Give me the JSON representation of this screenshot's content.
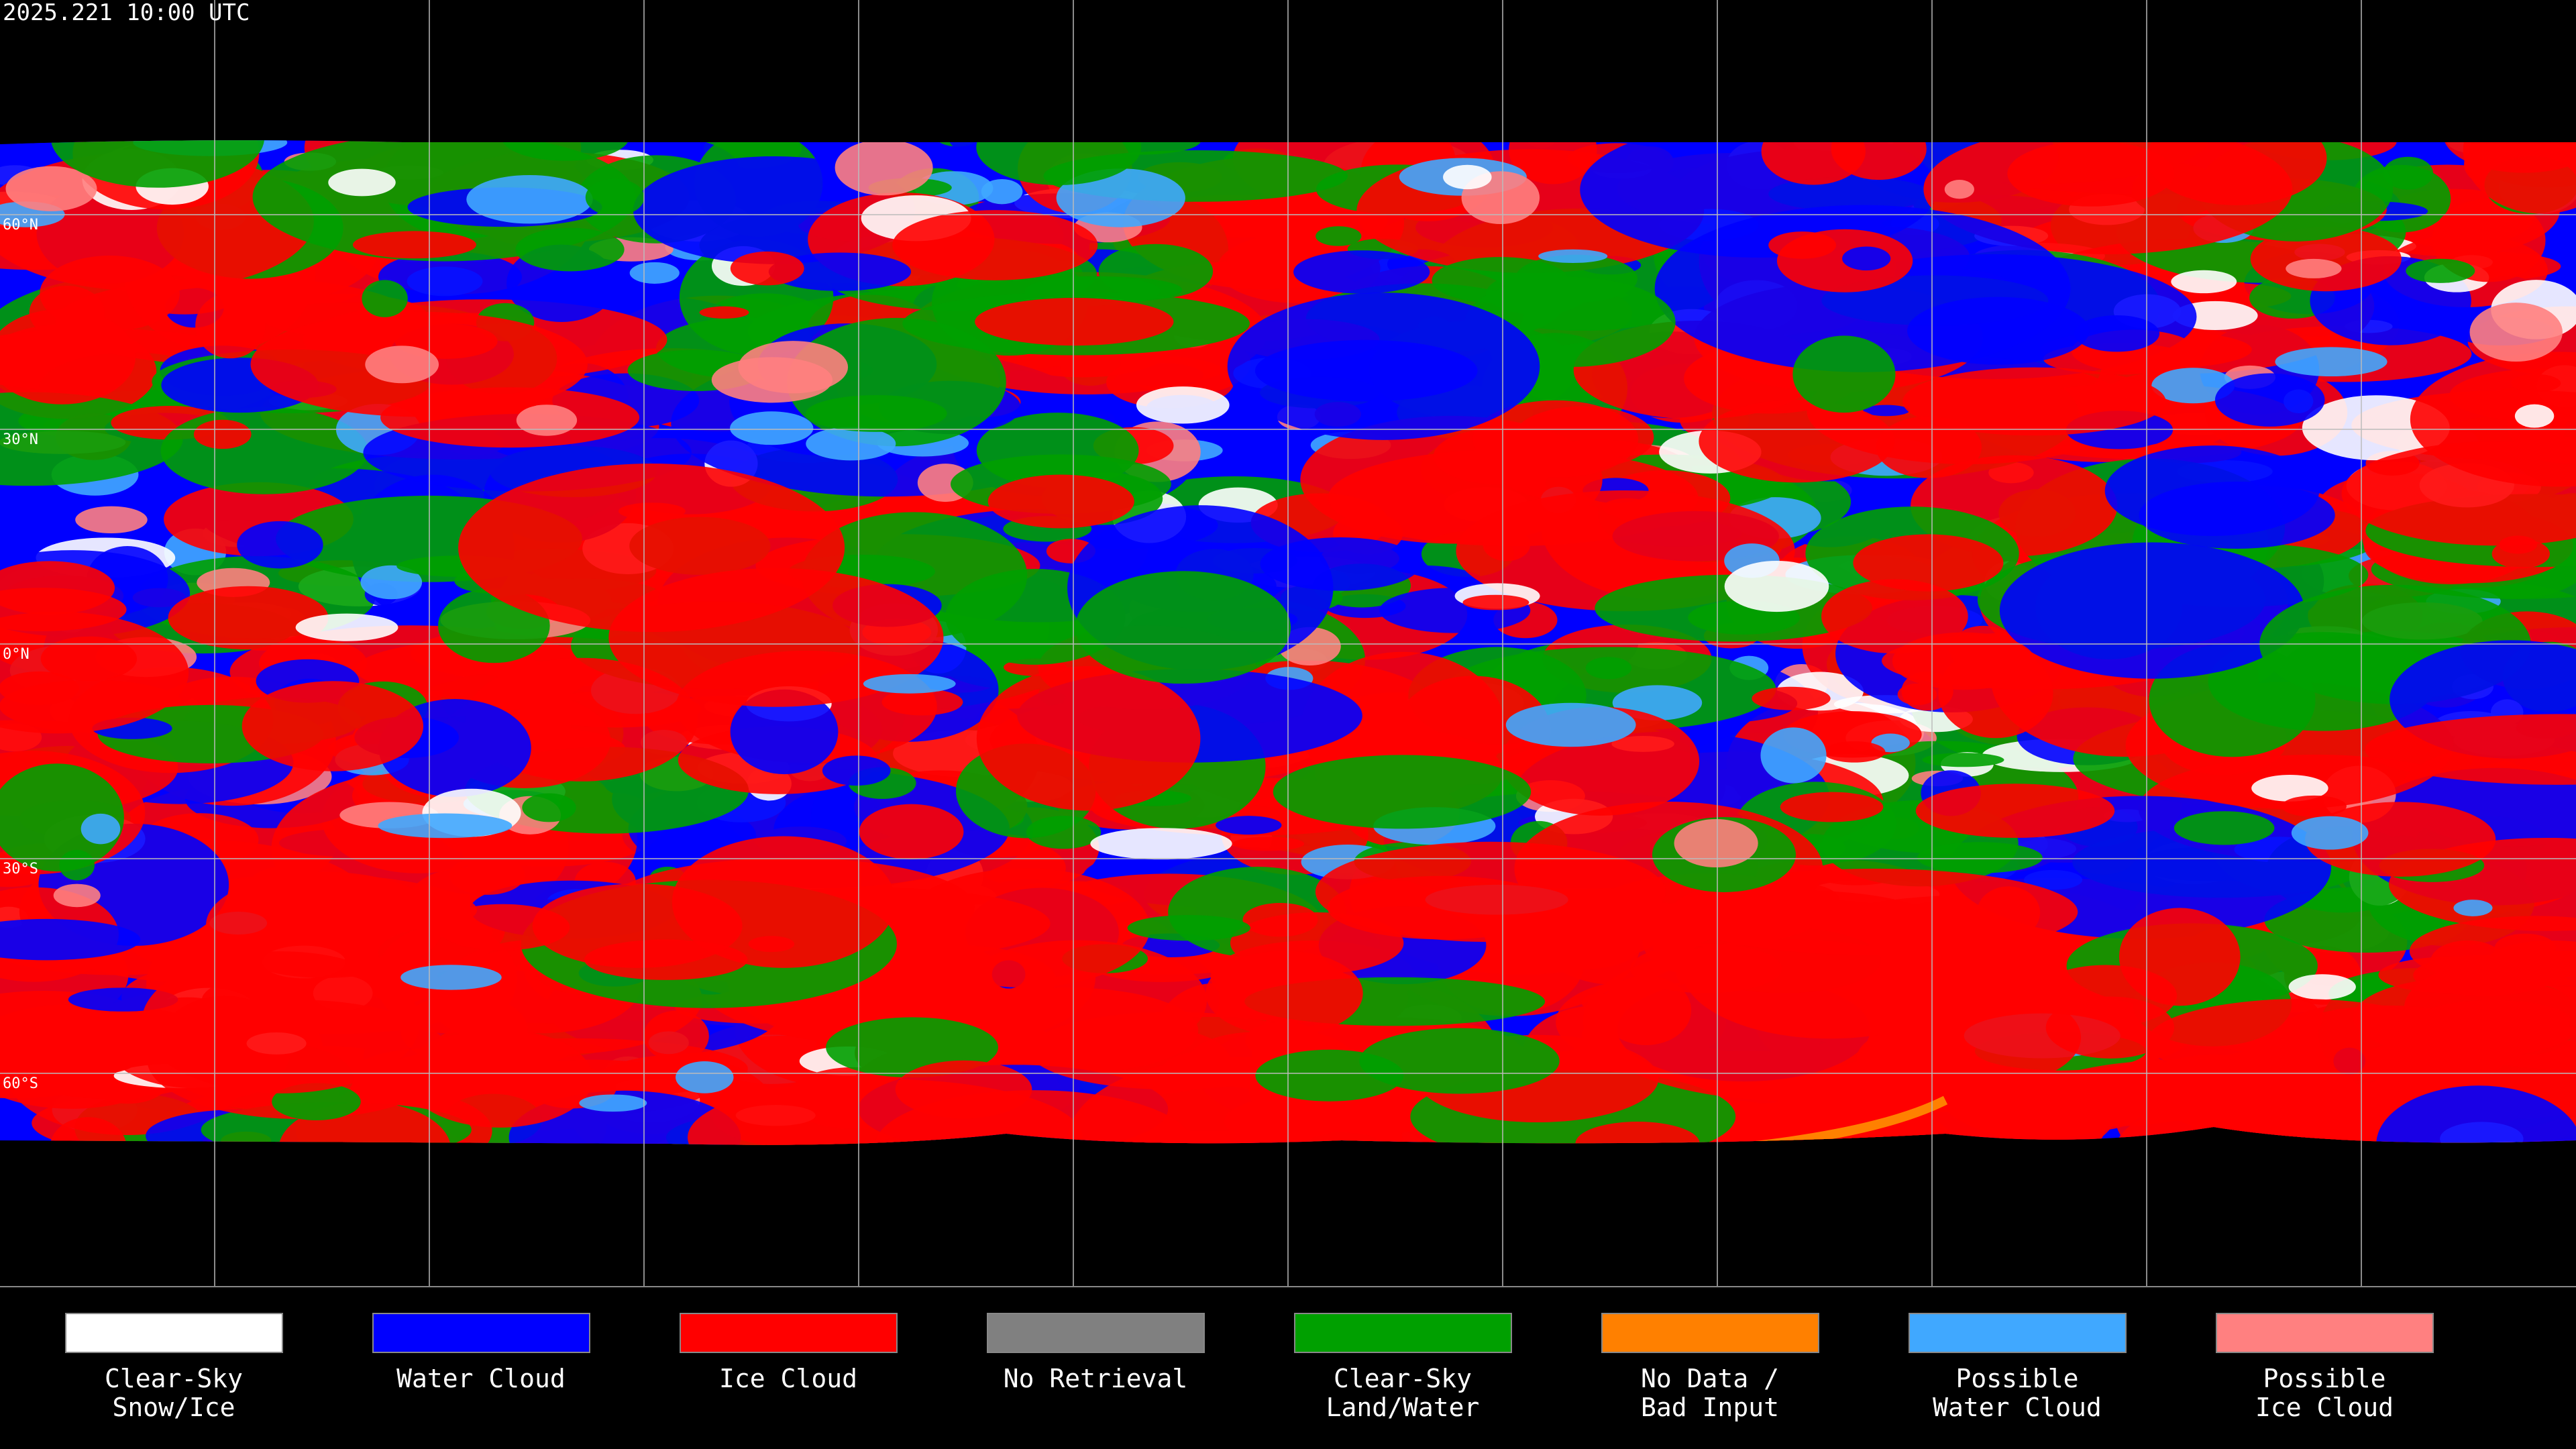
{
  "header": {
    "timestamp": "2025.221 10:00 UTC"
  },
  "latitude_labels": [
    "60°N",
    "30°N",
    "0°N",
    "30°S",
    "60°S"
  ],
  "legend": {
    "items": [
      {
        "label": [
          "Clear-Sky",
          "Snow/Ice"
        ],
        "color": "#ffffff"
      },
      {
        "label": [
          "Water Cloud"
        ],
        "color": "#0000ff"
      },
      {
        "label": [
          "Ice Cloud"
        ],
        "color": "#ff0000"
      },
      {
        "label": [
          "No Retrieval"
        ],
        "color": "#808080"
      },
      {
        "label": [
          "Clear-Sky",
          "Land/Water"
        ],
        "color": "#00a000"
      },
      {
        "label": [
          "No Data /",
          "Bad Input"
        ],
        "color": "#ff8000"
      },
      {
        "label": [
          "Possible",
          "Water Cloud"
        ],
        "color": "#40a8ff"
      },
      {
        "label": [
          "Possible",
          "Ice Cloud"
        ],
        "color": "#ff8080"
      }
    ]
  }
}
